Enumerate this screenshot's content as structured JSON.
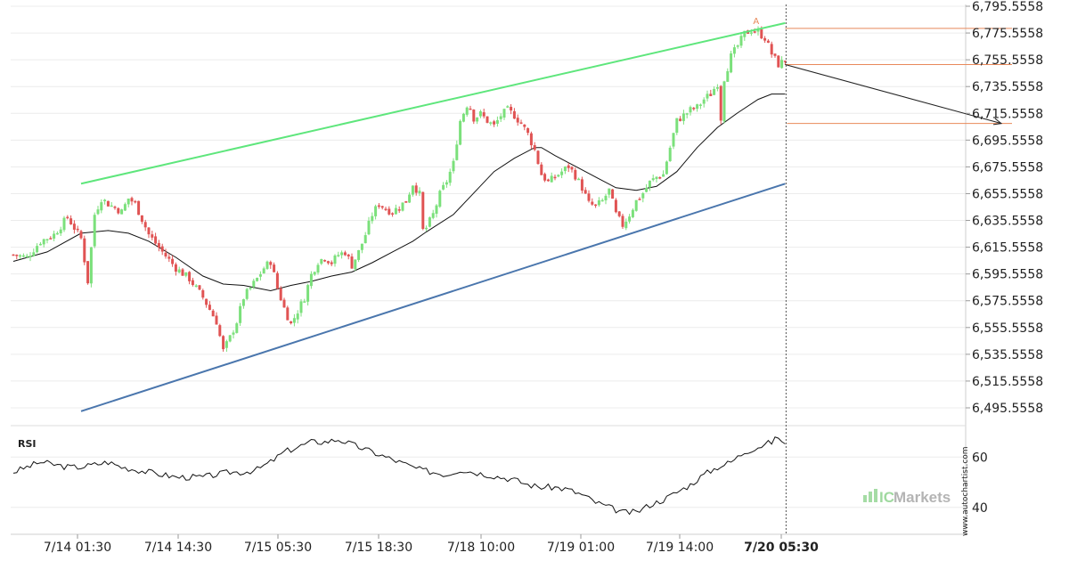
{
  "chart_data": {
    "type": "candlestick",
    "y_axis": {
      "ticks": [
        "6,795.5558",
        "6,775.5558",
        "6,755.5558",
        "6,735.5558",
        "6,715.5558",
        "6,695.5558",
        "6,675.5558",
        "6,655.5558",
        "6,635.5558",
        "6,615.5558",
        "6,595.5558",
        "6,575.5558",
        "6,555.5558",
        "6,535.5558",
        "6,515.5558",
        "6,495.5558"
      ],
      "min": 6495.5558,
      "max": 6795.5558
    },
    "x_axis": {
      "ticks": [
        "7/14 01:30",
        "7/14 14:30",
        "7/15 05:30",
        "7/15 18:30",
        "7/18 10:00",
        "7/19 01:00",
        "7/19 14:00",
        "7/20 05:30"
      ],
      "highlight_tick": "7/20 05:30"
    },
    "price_path": [
      [
        0,
        6610
      ],
      [
        4,
        6608
      ],
      [
        8,
        6620
      ],
      [
        12,
        6625
      ],
      [
        16,
        6638
      ],
      [
        18,
        6630
      ],
      [
        20,
        6622
      ],
      [
        22,
        6590
      ],
      [
        24,
        6640
      ],
      [
        26,
        6652
      ],
      [
        28,
        6648
      ],
      [
        32,
        6642
      ],
      [
        34,
        6652
      ],
      [
        36,
        6648
      ],
      [
        40,
        6625
      ],
      [
        44,
        6612
      ],
      [
        48,
        6600
      ],
      [
        52,
        6592
      ],
      [
        56,
        6578
      ],
      [
        60,
        6560
      ],
      [
        62,
        6538
      ],
      [
        64,
        6548
      ],
      [
        66,
        6560
      ],
      [
        68,
        6578
      ],
      [
        70,
        6585
      ],
      [
        72,
        6592
      ],
      [
        74,
        6600
      ],
      [
        76,
        6605
      ],
      [
        78,
        6585
      ],
      [
        80,
        6570
      ],
      [
        82,
        6558
      ],
      [
        84,
        6568
      ],
      [
        86,
        6578
      ],
      [
        88,
        6595
      ],
      [
        90,
        6605
      ],
      [
        92,
        6608
      ],
      [
        94,
        6604
      ],
      [
        96,
        6610
      ],
      [
        98,
        6612
      ],
      [
        100,
        6602
      ],
      [
        102,
        6612
      ],
      [
        104,
        6625
      ],
      [
        106,
        6640
      ],
      [
        108,
        6648
      ],
      [
        110,
        6644
      ],
      [
        112,
        6642
      ],
      [
        114,
        6646
      ],
      [
        116,
        6650
      ],
      [
        118,
        6663
      ],
      [
        120,
        6655
      ],
      [
        121,
        6628
      ],
      [
        122,
        6630
      ],
      [
        124,
        6640
      ],
      [
        126,
        6655
      ],
      [
        128,
        6665
      ],
      [
        130,
        6678
      ],
      [
        131,
        6695
      ],
      [
        132,
        6710
      ],
      [
        134,
        6722
      ],
      [
        135,
        6720
      ],
      [
        136,
        6712
      ],
      [
        138,
        6715
      ],
      [
        140,
        6710
      ],
      [
        142,
        6706
      ],
      [
        144,
        6714
      ],
      [
        146,
        6718
      ],
      [
        148,
        6714
      ],
      [
        150,
        6708
      ],
      [
        152,
        6700
      ],
      [
        154,
        6688
      ],
      [
        156,
        6670
      ],
      [
        158,
        6664
      ],
      [
        160,
        6668
      ],
      [
        162,
        6672
      ],
      [
        164,
        6676
      ],
      [
        166,
        6669
      ],
      [
        168,
        6660
      ],
      [
        170,
        6648
      ],
      [
        172,
        6646
      ],
      [
        174,
        6650
      ],
      [
        176,
        6658
      ],
      [
        178,
        6640
      ],
      [
        180,
        6632
      ],
      [
        182,
        6640
      ],
      [
        184,
        6650
      ],
      [
        186,
        6656
      ],
      [
        188,
        6664
      ],
      [
        190,
        6668
      ],
      [
        192,
        6670
      ],
      [
        194,
        6690
      ],
      [
        196,
        6710
      ],
      [
        198,
        6714
      ],
      [
        200,
        6718
      ],
      [
        202,
        6720
      ],
      [
        204,
        6726
      ],
      [
        206,
        6730
      ],
      [
        208,
        6738
      ],
      [
        209,
        6712
      ],
      [
        210,
        6742
      ],
      [
        212,
        6758
      ],
      [
        214,
        6766
      ],
      [
        216,
        6775
      ],
      [
        218,
        6778
      ],
      [
        220,
        6776
      ],
      [
        222,
        6772
      ],
      [
        224,
        6760
      ],
      [
        226,
        6752
      ],
      [
        228,
        6755
      ]
    ],
    "ma_path": [
      [
        0,
        6605
      ],
      [
        10,
        6612
      ],
      [
        20,
        6626
      ],
      [
        28,
        6628
      ],
      [
        34,
        6626
      ],
      [
        40,
        6620
      ],
      [
        48,
        6608
      ],
      [
        56,
        6594
      ],
      [
        62,
        6588
      ],
      [
        68,
        6587
      ],
      [
        72,
        6585
      ],
      [
        76,
        6583
      ],
      [
        82,
        6587
      ],
      [
        88,
        6590
      ],
      [
        94,
        6594
      ],
      [
        100,
        6597
      ],
      [
        106,
        6604
      ],
      [
        112,
        6612
      ],
      [
        118,
        6620
      ],
      [
        122,
        6627
      ],
      [
        130,
        6640
      ],
      [
        136,
        6656
      ],
      [
        142,
        6672
      ],
      [
        148,
        6682
      ],
      [
        154,
        6690
      ],
      [
        156,
        6690
      ],
      [
        160,
        6684
      ],
      [
        166,
        6676
      ],
      [
        172,
        6668
      ],
      [
        178,
        6660
      ],
      [
        184,
        6658
      ],
      [
        190,
        6661
      ],
      [
        196,
        6672
      ],
      [
        202,
        6690
      ],
      [
        208,
        6705
      ],
      [
        214,
        6716
      ],
      [
        220,
        6726
      ],
      [
        224,
        6730
      ],
      [
        228,
        6730
      ]
    ],
    "candle_count": 229,
    "channel": {
      "upper": {
        "from": [
          20,
          6663
        ],
        "to": [
          228,
          6783
        ]
      },
      "lower": {
        "from": [
          20,
          6493
        ],
        "to": [
          228,
          6663
        ]
      }
    },
    "levels": [
      {
        "from": 228,
        "to": 295,
        "price": 6779
      },
      {
        "from": 228,
        "to": 295,
        "price": 6752
      },
      {
        "from": 228,
        "to": 295,
        "price": 6708
      }
    ],
    "forecast_arrow": {
      "from": [
        228,
        6752
      ],
      "to": [
        295,
        6708
      ]
    },
    "pattern_marker": {
      "text": "A",
      "at": [
        218,
        6785
      ]
    },
    "current_time_index": 228,
    "rsi": {
      "label": "RSI",
      "ticks": [
        "60",
        "40"
      ],
      "min": 30,
      "max": 70,
      "path": [
        [
          0,
          54
        ],
        [
          4,
          56
        ],
        [
          8,
          58
        ],
        [
          12,
          57
        ],
        [
          16,
          56
        ],
        [
          20,
          56
        ],
        [
          24,
          57
        ],
        [
          28,
          58
        ],
        [
          32,
          56
        ],
        [
          36,
          55
        ],
        [
          40,
          54
        ],
        [
          44,
          53
        ],
        [
          48,
          52
        ],
        [
          52,
          52
        ],
        [
          56,
          52
        ],
        [
          60,
          53
        ],
        [
          64,
          54
        ],
        [
          68,
          54
        ],
        [
          72,
          55
        ],
        [
          76,
          58
        ],
        [
          80,
          62
        ],
        [
          84,
          64
        ],
        [
          88,
          66
        ],
        [
          92,
          66
        ],
        [
          96,
          67
        ],
        [
          100,
          65
        ],
        [
          104,
          63
        ],
        [
          108,
          61
        ],
        [
          112,
          59
        ],
        [
          116,
          57
        ],
        [
          120,
          55
        ],
        [
          124,
          54
        ],
        [
          128,
          53
        ],
        [
          132,
          55
        ],
        [
          136,
          54
        ],
        [
          140,
          53
        ],
        [
          144,
          52
        ],
        [
          148,
          51
        ],
        [
          152,
          49
        ],
        [
          156,
          48
        ],
        [
          160,
          48
        ],
        [
          164,
          47
        ],
        [
          168,
          45
        ],
        [
          172,
          42
        ],
        [
          176,
          40
        ],
        [
          180,
          38
        ],
        [
          184,
          38
        ],
        [
          188,
          41
        ],
        [
          192,
          43
        ],
        [
          196,
          46
        ],
        [
          200,
          49
        ],
        [
          204,
          53
        ],
        [
          208,
          56
        ],
        [
          212,
          58
        ],
        [
          216,
          62
        ],
        [
          220,
          64
        ],
        [
          224,
          66
        ],
        [
          226,
          68
        ],
        [
          228,
          65
        ]
      ]
    }
  },
  "branding": {
    "logo_text_a": "IC",
    "logo_text_b": "Markets",
    "side_text": "www.autochartist.com"
  },
  "colors": {
    "bull": "#7be07b",
    "bear": "#e05353",
    "upper_channel": "#5ee67c",
    "lower_channel": "#4a76ad",
    "levels": "#e8895a",
    "ma": "#111111",
    "rsi": "#111111",
    "logo_a": "#7fcd7f",
    "logo_b": "#9b9b9b"
  }
}
